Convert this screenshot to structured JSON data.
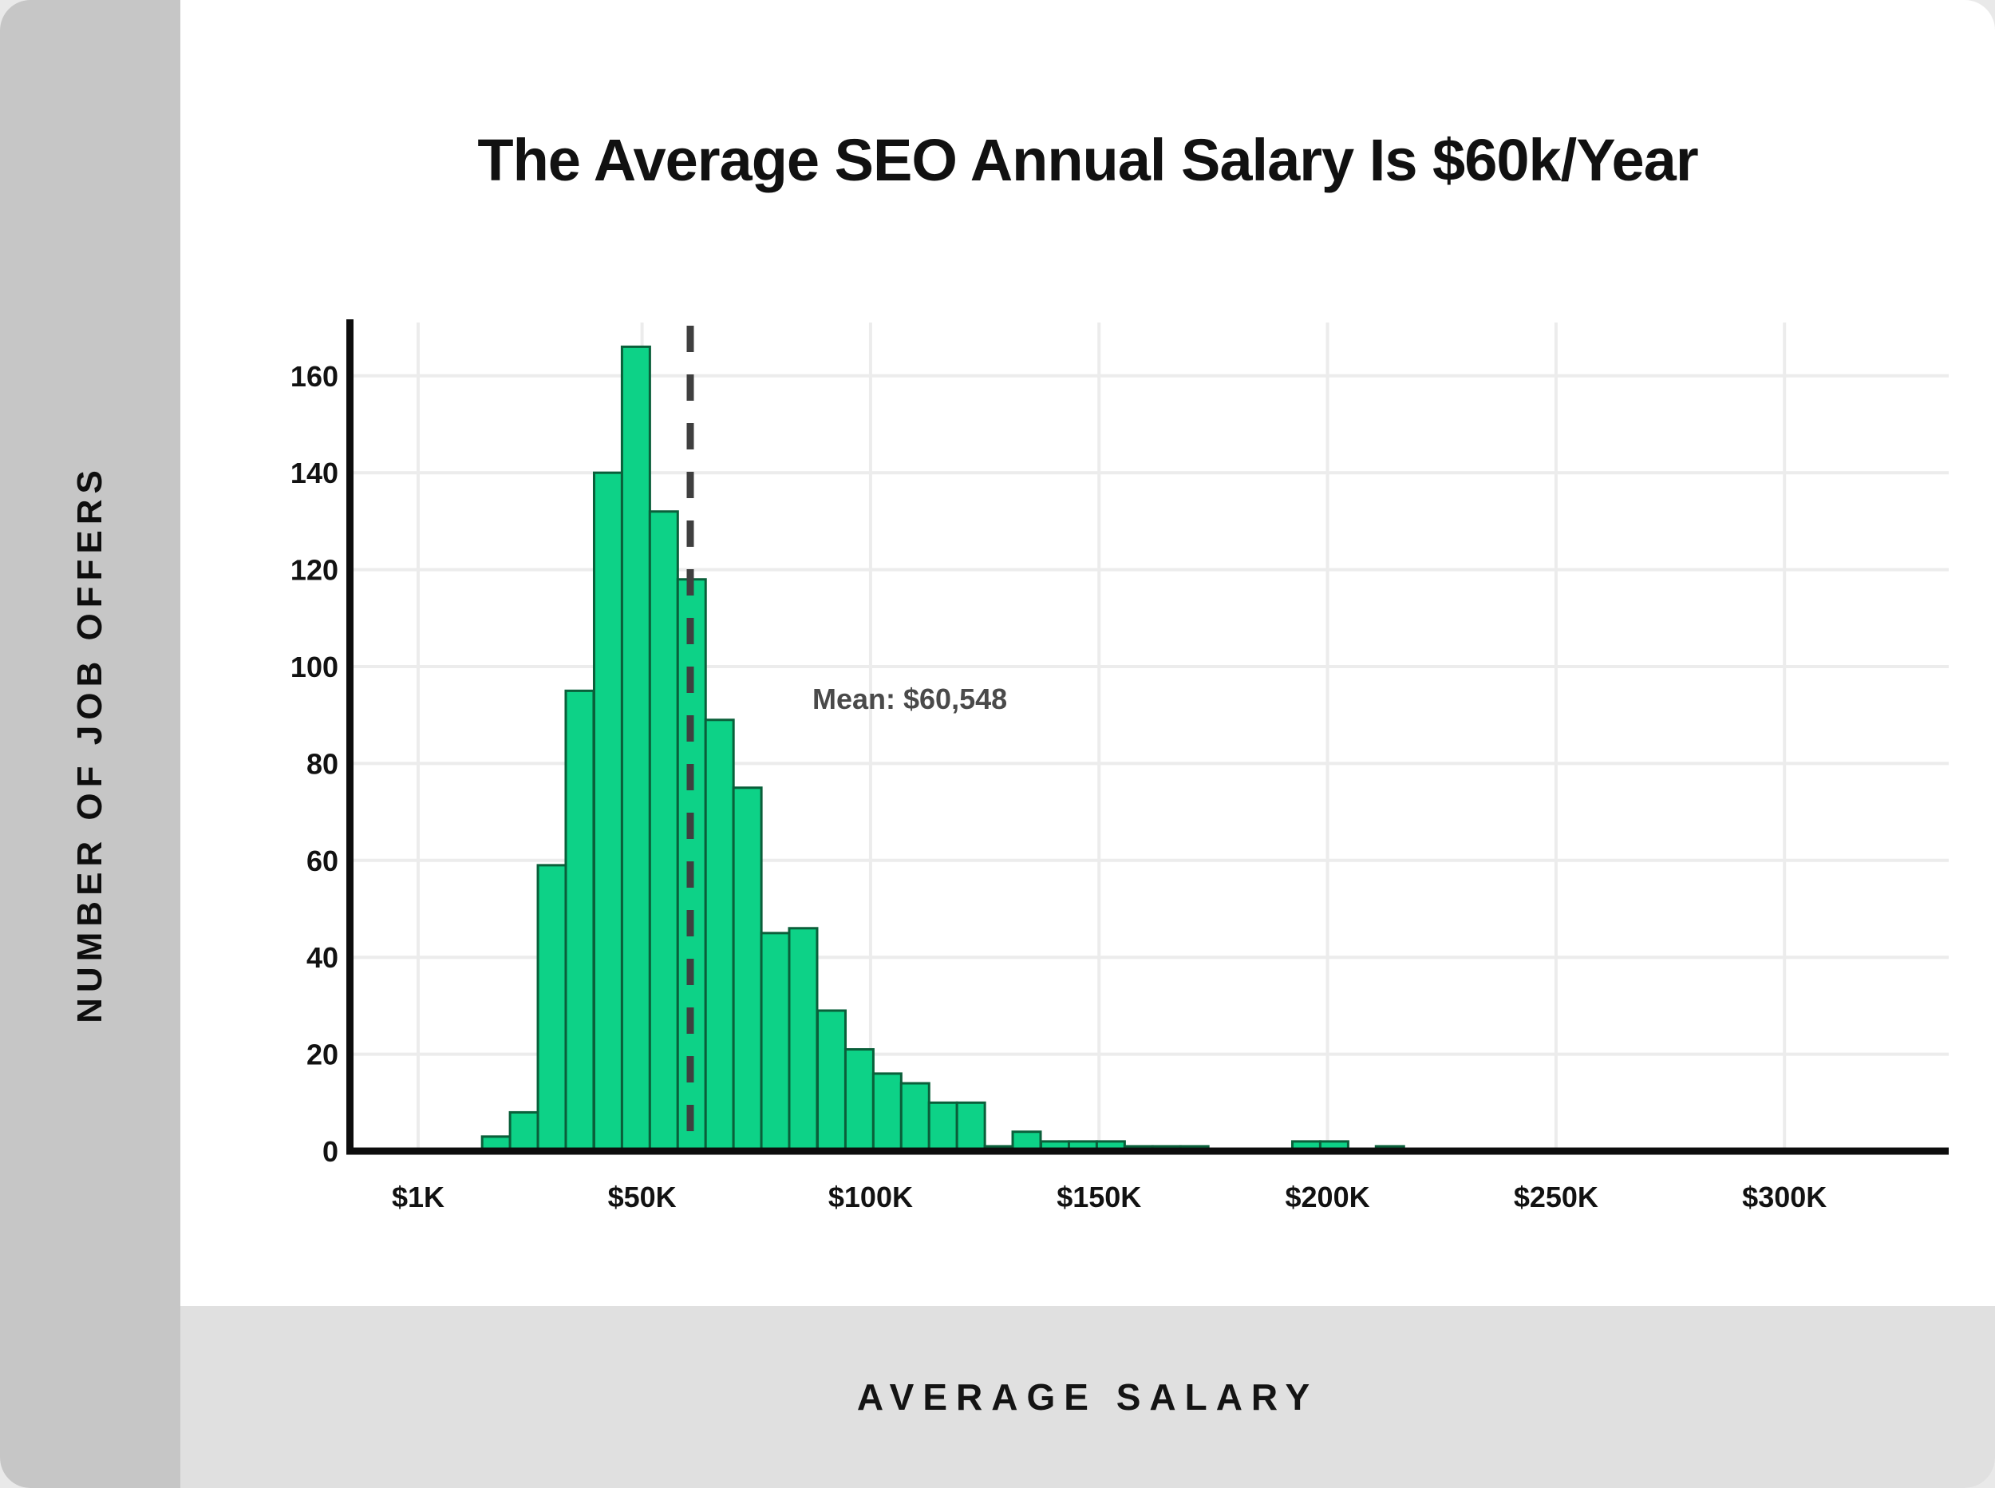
{
  "page": {
    "background": "#e9e9e9",
    "card_background": "#ffffff",
    "sidebar_background": "#c6c6c6",
    "bottom_band_background": "#e0e0e0"
  },
  "chart": {
    "title": "The Average SEO Annual Salary Is $60k/Year",
    "y_axis_title": "NUMBER OF JOB OFFERS",
    "x_axis_title": "AVERAGE SALARY",
    "mean_annotation": "Mean: $60,548"
  },
  "chart_data": {
    "type": "bar",
    "subtype": "histogram",
    "title": "The Average SEO Annual Salary Is $60k/Year",
    "xlabel": "AVERAGE SALARY",
    "ylabel": "NUMBER OF JOB OFFERS",
    "x_tick_labels": [
      "$1K",
      "$50K",
      "$100K",
      "$150K",
      "$200K",
      "$250K",
      "$300K"
    ],
    "x_tick_values_k": [
      1,
      50,
      100,
      150,
      200,
      250,
      300
    ],
    "y_ticks": [
      0,
      20,
      40,
      60,
      80,
      100,
      120,
      140,
      160
    ],
    "ylim": [
      0,
      170
    ],
    "grid": true,
    "legend": false,
    "mean_k": 60.548,
    "mean_label": "Mean: $60,548",
    "mean_line_color": "#3f3f3f",
    "mean_text_color": "#4a4a4a",
    "bar_color": "#0dd287",
    "bar_edge_color": "#0a5f3a",
    "gridline_color": "#ececec",
    "axis_color": "#0d0d0d",
    "tick_label_color": "#121212",
    "bin_width_k": 6.11,
    "bins": [
      {
        "start_k": 15.0,
        "count": 3
      },
      {
        "start_k": 21.1,
        "count": 8
      },
      {
        "start_k": 27.2,
        "count": 59
      },
      {
        "start_k": 33.3,
        "count": 95
      },
      {
        "start_k": 39.5,
        "count": 140
      },
      {
        "start_k": 45.6,
        "count": 166
      },
      {
        "start_k": 51.7,
        "count": 132
      },
      {
        "start_k": 57.8,
        "count": 118
      },
      {
        "start_k": 63.9,
        "count": 89
      },
      {
        "start_k": 70.0,
        "count": 75
      },
      {
        "start_k": 76.1,
        "count": 45
      },
      {
        "start_k": 82.2,
        "count": 46
      },
      {
        "start_k": 88.4,
        "count": 29
      },
      {
        "start_k": 94.5,
        "count": 21
      },
      {
        "start_k": 100.6,
        "count": 16
      },
      {
        "start_k": 106.7,
        "count": 14
      },
      {
        "start_k": 112.8,
        "count": 10
      },
      {
        "start_k": 118.9,
        "count": 10
      },
      {
        "start_k": 125.0,
        "count": 1
      },
      {
        "start_k": 131.1,
        "count": 4
      },
      {
        "start_k": 137.3,
        "count": 2
      },
      {
        "start_k": 143.4,
        "count": 2
      },
      {
        "start_k": 149.5,
        "count": 2
      },
      {
        "start_k": 155.6,
        "count": 1
      },
      {
        "start_k": 161.7,
        "count": 1
      },
      {
        "start_k": 167.8,
        "count": 1
      },
      {
        "start_k": 173.9,
        "count": 0
      },
      {
        "start_k": 180.1,
        "count": 0
      },
      {
        "start_k": 186.2,
        "count": 0
      },
      {
        "start_k": 192.3,
        "count": 2
      },
      {
        "start_k": 198.4,
        "count": 2
      },
      {
        "start_k": 204.5,
        "count": 0
      },
      {
        "start_k": 210.6,
        "count": 1
      }
    ]
  }
}
